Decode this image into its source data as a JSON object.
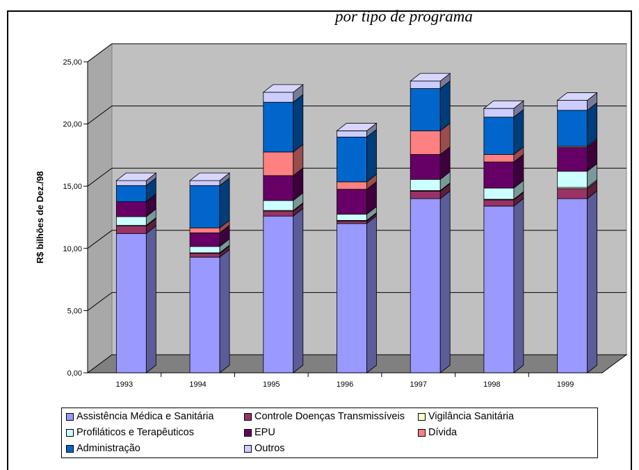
{
  "header": {
    "title_fragment": "por tipo de programa"
  },
  "chart_data": {
    "type": "bar",
    "stacked": true,
    "three_d": true,
    "categories": [
      "1993",
      "1994",
      "1995",
      "1996",
      "1997",
      "1998",
      "1999"
    ],
    "ylabel": "R$ bilhões de Dez./98",
    "xlabel": "",
    "ylim": [
      0,
      25
    ],
    "yticks": [
      "0,00",
      "5,00",
      "10,00",
      "15,00",
      "20,00",
      "25,00"
    ],
    "grid": true,
    "legend_position": "bottom",
    "series": [
      {
        "name": "Assistência Médica e Sanitária",
        "color": "#9999ff",
        "values": [
          11.2,
          9.3,
          12.6,
          12.0,
          14.0,
          13.4,
          14.0
        ]
      },
      {
        "name": "Controle Doenças Transmissíveis",
        "color": "#993366",
        "values": [
          0.6,
          0.3,
          0.4,
          0.2,
          0.6,
          0.5,
          0.8
        ]
      },
      {
        "name": "Vigilância Sanitária",
        "color": "#ffffcc",
        "values": [
          0.05,
          0.05,
          0.05,
          0.05,
          0.05,
          0.05,
          0.1
        ]
      },
      {
        "name": "Profiláticos e Terapêuticos",
        "color": "#ccffff",
        "values": [
          0.7,
          0.5,
          0.8,
          0.5,
          0.9,
          0.9,
          1.3
        ]
      },
      {
        "name": "EPU",
        "color": "#660066",
        "values": [
          1.2,
          1.1,
          2.0,
          2.0,
          2.0,
          2.1,
          1.9
        ]
      },
      {
        "name": "Dívida",
        "color": "#ff8080",
        "values": [
          0.0,
          0.4,
          1.9,
          0.6,
          1.9,
          0.6,
          0.1
        ]
      },
      {
        "name": "Administração",
        "color": "#0066cc",
        "values": [
          1.3,
          3.4,
          4.0,
          3.6,
          3.4,
          3.0,
          2.9
        ]
      },
      {
        "name": "Outros",
        "color": "#ccccff",
        "values": [
          0.4,
          0.4,
          0.8,
          0.5,
          0.6,
          0.7,
          0.8
        ]
      }
    ]
  }
}
